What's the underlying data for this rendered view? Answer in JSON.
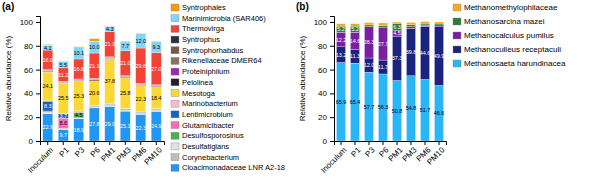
{
  "chart_data": [
    {
      "type": "bar",
      "stacked": true,
      "title": "(a)",
      "y_label": "Relative abundance (%)",
      "categories": [
        "Inoculum",
        "P1",
        "P3",
        "P6",
        "PM1",
        "PM3",
        "PM6",
        "PM10"
      ],
      "ylim": [
        0,
        105
      ],
      "yticks": [
        0,
        20,
        40,
        60,
        80,
        100
      ],
      "grid": false,
      "legend": "right",
      "data_labels": true,
      "series": [
        {
          "name": "Cloacimonadaceae LNR A2-18",
          "color": "#2196F3",
          "values": [
            22.9,
            9.7,
            18.9,
            27.8,
            29.0,
            25.1,
            22.3,
            24.9
          ],
          "value_labels": [
            "22.9",
            "9.7",
            "18.9",
            "27.8",
            "29.0",
            "25.1",
            "22.3",
            "24.9"
          ]
        },
        {
          "name": "Corynebacterium",
          "color": "#BDBDBD",
          "values": [
            0.5,
            0.3,
            0.3,
            0.3,
            0.3,
            0.3,
            0.3,
            0.3
          ]
        },
        {
          "name": "Desulfatiglans",
          "color": "#E0E0E0",
          "values": [
            0.5,
            0.3,
            0.3,
            0.3,
            0.3,
            0.3,
            0.3,
            0.3
          ]
        },
        {
          "name": "Desulfosporosinus",
          "color": "#4CAF50",
          "values": [
            0.3,
            0.3,
            4.5,
            0.3,
            0.3,
            0.3,
            0.3,
            0.3
          ],
          "value_labels": [
            null,
            null,
            "4.5",
            null,
            null,
            null,
            null,
            null
          ]
        },
        {
          "name": "Glutamicibacter",
          "color": "#FF69B4",
          "values": [
            1.0,
            8.6,
            0.5,
            0.5,
            0.5,
            0.5,
            0.5,
            0.5
          ],
          "value_labels": [
            null,
            "8.6",
            null,
            null,
            null,
            null,
            null,
            null
          ]
        },
        {
          "name": "Lentimicrobium",
          "color": "#1565C0",
          "values": [
            8.3,
            3.7,
            0.5,
            0.5,
            0.5,
            0.5,
            0.5,
            0.5
          ],
          "value_labels": [
            "8.3",
            "3.7",
            null,
            null,
            null,
            null,
            null,
            null
          ]
        },
        {
          "name": "Marinobacterium",
          "color": "#F8BBD0",
          "values": [
            0.3,
            0.3,
            0.3,
            0.3,
            0.3,
            0.3,
            0.3,
            0.3
          ]
        },
        {
          "name": "Mesotoga",
          "color": "#FDD835",
          "values": [
            24.1,
            25.5,
            25.3,
            20.6,
            37.8,
            25.8,
            22.3,
            18.4
          ],
          "value_labels": [
            "24.1",
            "25.5",
            "25.3",
            "20.6",
            "37.8",
            "25.8",
            "22.3",
            "18.4"
          ]
        },
        {
          "name": "Pelolinea",
          "color": "#212121",
          "values": [
            0.5,
            0.3,
            0.3,
            1.0,
            0.5,
            0.5,
            0.5,
            0.5
          ]
        },
        {
          "name": "Proteiniphilum",
          "color": "#9C27B0",
          "values": [
            0.5,
            0.3,
            0.3,
            0.3,
            0.3,
            0.3,
            0.3,
            0.3
          ]
        },
        {
          "name": "Rikenellaceae DMER64",
          "color": "#8D6E63",
          "values": [
            0.5,
            0.3,
            0.3,
            0.3,
            0.3,
            0.3,
            0.3,
            0.3
          ]
        },
        {
          "name": "Syntrophorhabdus",
          "color": "#795548",
          "values": [
            0.5,
            0.3,
            0.3,
            0.3,
            0.3,
            0.3,
            0.3,
            0.3
          ]
        },
        {
          "name": "Syntrophus",
          "color": "#263238",
          "values": [
            0.5,
            0.3,
            0.3,
            0.3,
            0.3,
            0.3,
            0.3,
            0.3
          ]
        },
        {
          "name": "Thermovirga",
          "color": "#F44336",
          "values": [
            16.0,
            11.2,
            16.8,
            21.1,
            21.3,
            21.0,
            29.6,
            27.0
          ],
          "value_labels": [
            "16.0",
            "11.2",
            "16.8",
            "21.1",
            "21.3",
            "21.0",
            "29.6",
            "27.0"
          ]
        },
        {
          "name": "Marinimicrobia (SAR406)",
          "color": "#81D4FA",
          "values": [
            4.1,
            5.5,
            10.1,
            10.0,
            4.3,
            7.7,
            12.0,
            9.3
          ],
          "value_labels": [
            "4.1",
            "5.5",
            "10.1",
            "10.0",
            "4.3",
            "7.7",
            "12.0",
            "9.3"
          ]
        },
        {
          "name": "Syntrophales",
          "color": "#FF9800",
          "values": [
            0.5,
            0.3,
            0.3,
            2.0,
            0.3,
            0.3,
            0.3,
            0.3
          ]
        }
      ]
    },
    {
      "type": "bar",
      "stacked": true,
      "title": "(b)",
      "y_label": "Relative abundance (%)",
      "categories": [
        "Inoculum",
        "P1",
        "P3",
        "P6",
        "PM1",
        "PM3",
        "PM6",
        "PM10"
      ],
      "ylim": [
        0,
        105
      ],
      "yticks": [
        0,
        20,
        40,
        60,
        80,
        100
      ],
      "grid": false,
      "legend": "right",
      "data_labels": true,
      "series": [
        {
          "name": "Methanosaeta harundinacea",
          "color": "#29B6F6",
          "values": [
            65.9,
            65.4,
            57.7,
            56.3,
            50.8,
            54.8,
            51.7,
            46.6
          ],
          "value_labels": [
            "65.9",
            "65.4",
            "57.7",
            "56.3",
            "50.8",
            "54.8",
            "51.7",
            "46.6"
          ]
        },
        {
          "name": "Methanoculleus receptaculi",
          "color": "#1A237E",
          "values": [
            13.2,
            11.3,
            12.0,
            11.7,
            37.3,
            39.8,
            44.6,
            49.9
          ],
          "value_labels": [
            "13.2",
            "11.3",
            "12.0",
            "11.7",
            "37.3",
            "39.8",
            "44.6",
            "49.9"
          ]
        },
        {
          "name": "Methanocalculus pumilus",
          "color": "#7B1FA2",
          "values": [
            12.2,
            14.6,
            26.3,
            27.7,
            4.5,
            1.5,
            1.0,
            1.0
          ],
          "value_labels": [
            "12.2",
            "14.6",
            "26.3",
            "27.7",
            "4.5",
            null,
            null,
            null
          ]
        },
        {
          "name": "Methanosarcina mazei",
          "color": "#2E7D32",
          "values": [
            5.2,
            5.2,
            1.5,
            1.5,
            6.3,
            1.5,
            1.0,
            1.5
          ],
          "value_labels": [
            "5.2",
            "5.2",
            null,
            null,
            "6.3",
            null,
            null,
            null
          ]
        },
        {
          "name": "Methanomethylophilaceae",
          "color": "#F9A825",
          "values": [
            2.0,
            2.0,
            2.0,
            2.0,
            1.0,
            2.0,
            2.0,
            1.0
          ]
        }
      ]
    }
  ]
}
